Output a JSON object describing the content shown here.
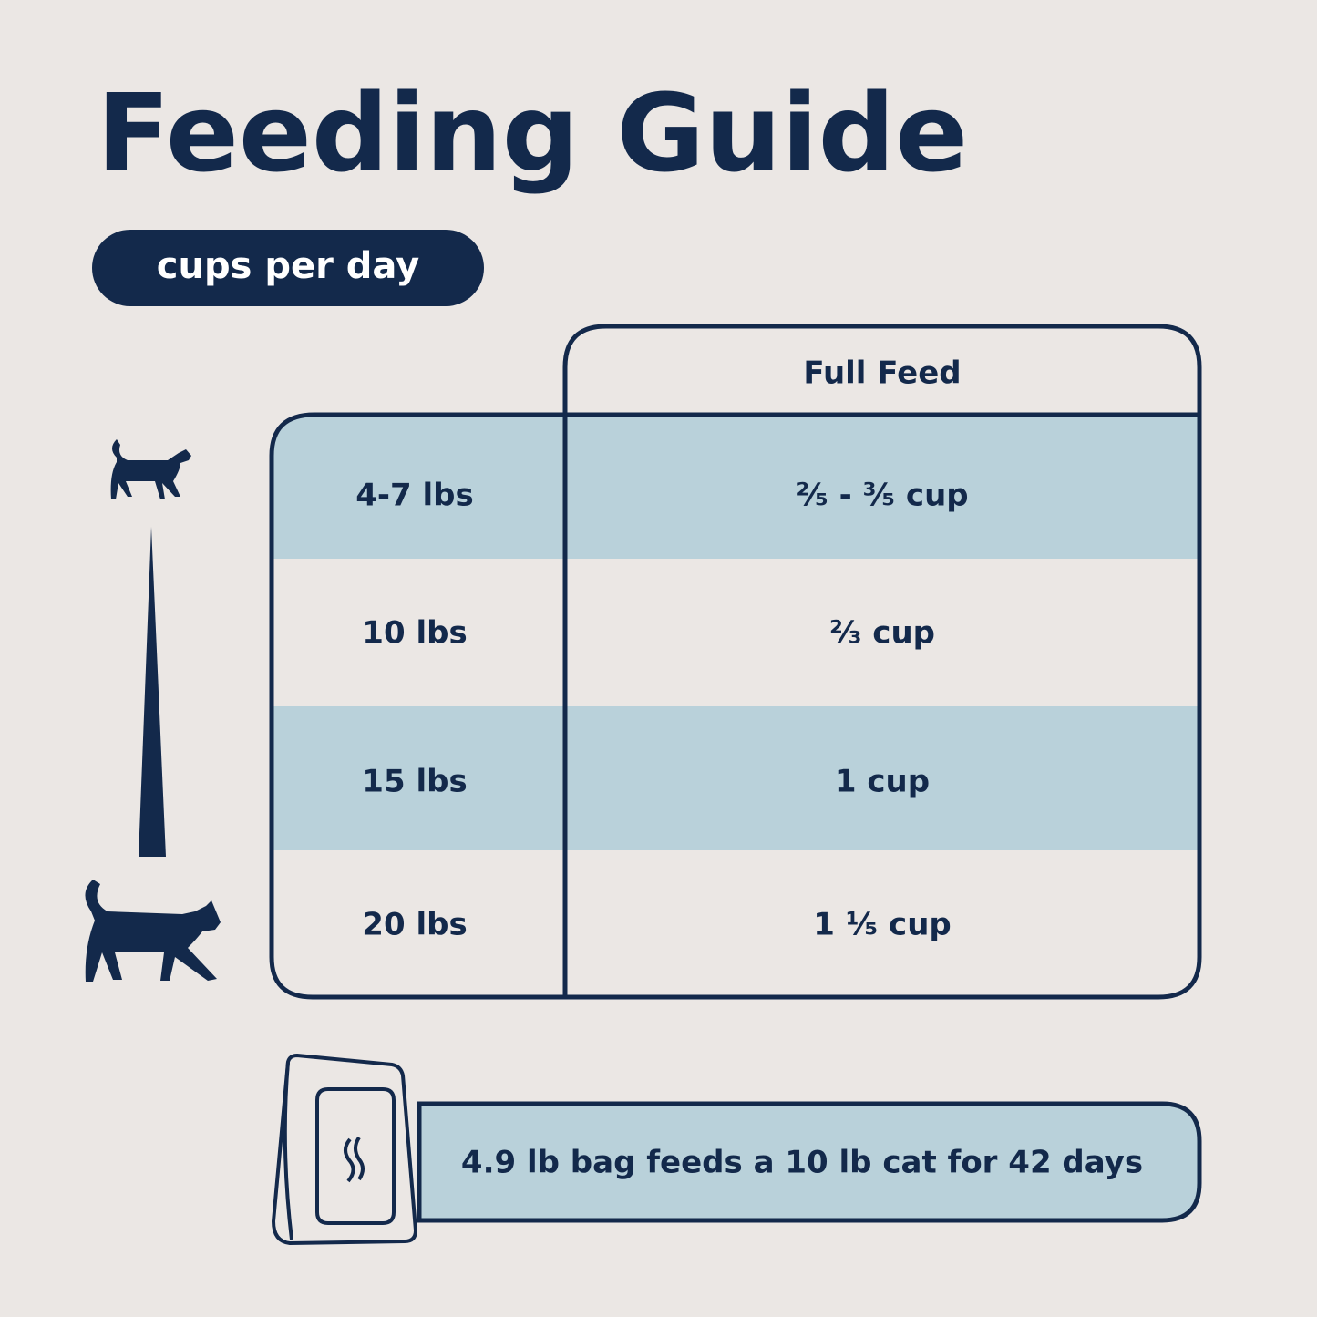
{
  "header": {
    "title": "Feeding Guide",
    "badge": "cups per day"
  },
  "table": {
    "column_header": "Full Feed",
    "rows": [
      [
        "4-7 lbs",
        "²⁄₅ - ³⁄₅ cup"
      ],
      [
        "10 lbs",
        "²⁄₃ cup"
      ],
      [
        "15 lbs",
        "1 cup"
      ],
      [
        "20 lbs",
        "1 ¹⁄₅ cup"
      ]
    ]
  },
  "footer": {
    "note": "4.9 lb bag feeds a 10 lb cat for 42 days"
  }
}
